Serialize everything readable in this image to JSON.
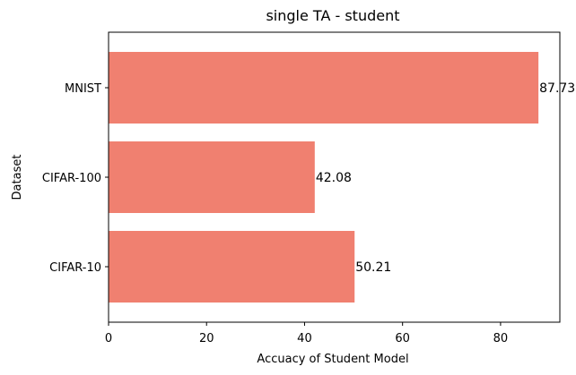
{
  "chart_data": {
    "type": "bar",
    "orientation": "horizontal",
    "title": "single TA - student",
    "xlabel": "Accuacy of Student Model",
    "ylabel": "Dataset",
    "categories": [
      "CIFAR-10",
      "CIFAR-100",
      "MNIST"
    ],
    "values": [
      50.21,
      42.08,
      87.73
    ],
    "data_labels": [
      "50.21",
      "42.08",
      "87.73"
    ],
    "xlim": [
      0,
      92.1
    ],
    "xticks": [
      0,
      20,
      40,
      60,
      80
    ],
    "xtick_labels": [
      "0",
      "20",
      "40",
      "60",
      "80"
    ],
    "bar_color": "#f08070",
    "grid": false,
    "legend": "none"
  }
}
